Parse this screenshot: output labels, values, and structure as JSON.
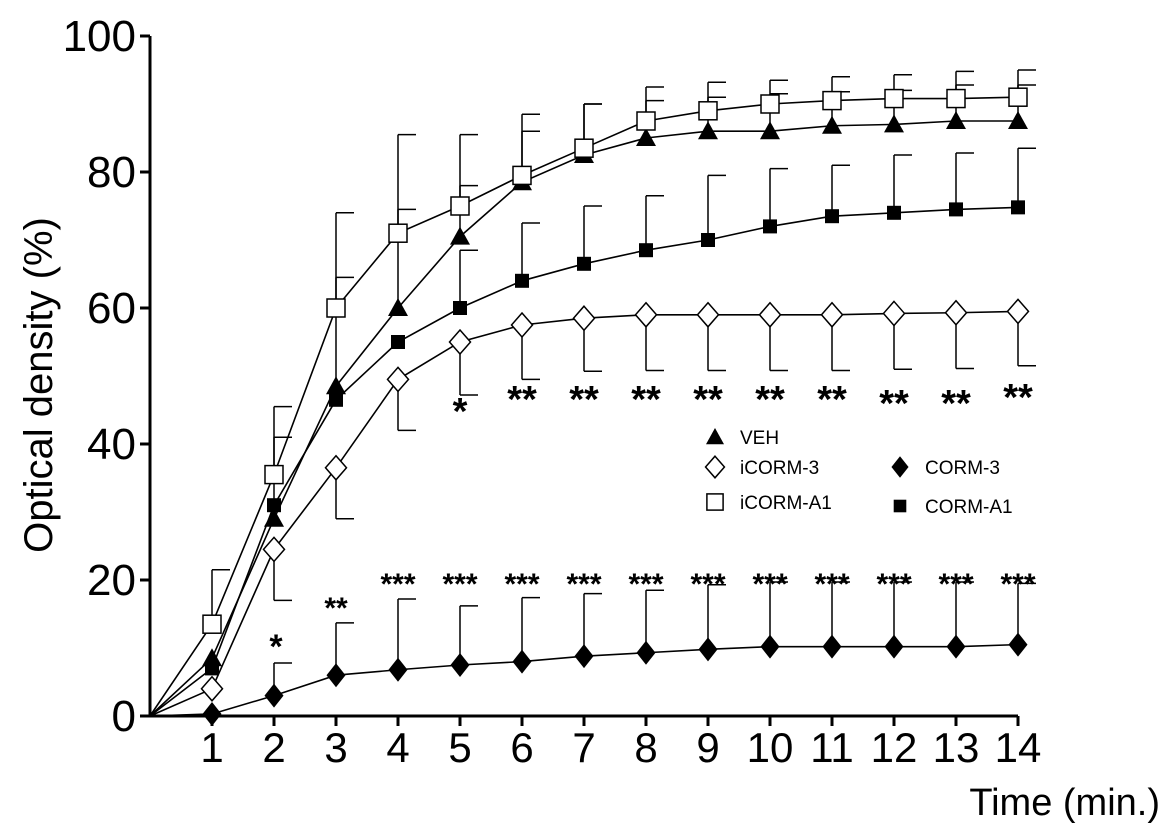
{
  "chart_data": {
    "type": "line",
    "xlabel": "Time (min.)",
    "ylabel": "Optical density (%)",
    "xlim": [
      0,
      14
    ],
    "ylim": [
      0,
      100
    ],
    "x_ticks": [
      "1",
      "2",
      "3",
      "4",
      "5",
      "6",
      "7",
      "8",
      "9",
      "10",
      "11",
      "12",
      "13",
      "14"
    ],
    "y_ticks": [
      "0",
      "20",
      "40",
      "60",
      "80",
      "100"
    ],
    "x": [
      0,
      1,
      2,
      3,
      4,
      5,
      6,
      7,
      8,
      9,
      10,
      11,
      12,
      13,
      14
    ],
    "legend_position": "center-right",
    "series": [
      {
        "name": "VEH",
        "marker": "triangle",
        "values": [
          0,
          8.5,
          29,
          48.5,
          60,
          70.5,
          78.5,
          82.5,
          85,
          86,
          86,
          86.8,
          87,
          87.5,
          87.5
        ],
        "error": [
          0,
          0,
          12,
          16,
          14.5,
          7.5,
          7.5,
          7.5,
          5.5,
          5,
          5.5,
          5,
          5,
          5.3,
          5.3
        ]
      },
      {
        "name": "iCORM-3",
        "marker": "diamond-open",
        "values": [
          0,
          4,
          24.5,
          36.5,
          49.5,
          55,
          57.5,
          58.5,
          59,
          59,
          59,
          59,
          59.2,
          59.3,
          59.5
        ],
        "error": [
          0,
          0,
          0,
          0,
          0,
          0,
          0,
          0,
          0,
          0,
          0,
          0,
          0,
          0,
          0
        ]
      },
      {
        "name": "iCORM-A1",
        "marker": "square-open",
        "values": [
          0,
          13.5,
          35.5,
          60,
          71,
          75,
          79.5,
          83.5,
          87.5,
          89,
          90,
          90.5,
          90.8,
          90.8,
          91
        ],
        "error": [
          0,
          8,
          10,
          14,
          14.5,
          10.5,
          9,
          6.5,
          5,
          4.2,
          3.5,
          3.5,
          3.5,
          4,
          4
        ]
      },
      {
        "name": "CORM-3",
        "marker": "diamond-filled",
        "values": [
          0,
          0.3,
          3,
          6,
          6.8,
          7.5,
          8,
          8.8,
          9.3,
          9.8,
          10.2,
          10.2,
          10.2,
          10.2,
          10.5
        ],
        "error": [
          0,
          0,
          4.8,
          7.7,
          10.4,
          8.7,
          9.4,
          9.2,
          9.2,
          9.5,
          9.5,
          9.5,
          9.5,
          9.5,
          9
        ]
      },
      {
        "name": "CORM-A1",
        "marker": "square-filled",
        "values": [
          0,
          7,
          31,
          46.5,
          55,
          60,
          64,
          66.5,
          68.5,
          70,
          72,
          73.5,
          74,
          74.5,
          74.8
        ],
        "error": [
          0,
          0,
          0,
          0,
          0,
          8.5,
          8.5,
          8.5,
          8,
          9.5,
          8.5,
          7.5,
          8.5,
          8.3,
          8.7
        ]
      }
    ],
    "icorm3_down_error": [
      0,
      0,
      7.5,
      7.5,
      7.5,
      7.8,
      8,
      7.8,
      8.2,
      8.2,
      8.2,
      8.2,
      8.2,
      8.2,
      8
    ],
    "annotations_icorm3": [
      {
        "x": 5,
        "text": "*"
      },
      {
        "x": 6,
        "text": "**"
      },
      {
        "x": 7,
        "text": "**"
      },
      {
        "x": 8,
        "text": "**"
      },
      {
        "x": 9,
        "text": "**"
      },
      {
        "x": 10,
        "text": "**"
      },
      {
        "x": 11,
        "text": "**"
      },
      {
        "x": 12,
        "text": "**"
      },
      {
        "x": 13,
        "text": "**"
      },
      {
        "x": 14,
        "text": "**"
      }
    ],
    "annotations_corm3": [
      {
        "x": 2,
        "text": "*"
      },
      {
        "x": 3,
        "text": "**"
      },
      {
        "x": 4,
        "text": "***"
      },
      {
        "x": 5,
        "text": "***"
      },
      {
        "x": 6,
        "text": "***"
      },
      {
        "x": 7,
        "text": "***"
      },
      {
        "x": 8,
        "text": "***"
      },
      {
        "x": 9,
        "text": "***"
      },
      {
        "x": 10,
        "text": "***"
      },
      {
        "x": 11,
        "text": "***"
      },
      {
        "x": 12,
        "text": "***"
      },
      {
        "x": 13,
        "text": "***"
      },
      {
        "x": 14,
        "text": "***"
      }
    ]
  }
}
